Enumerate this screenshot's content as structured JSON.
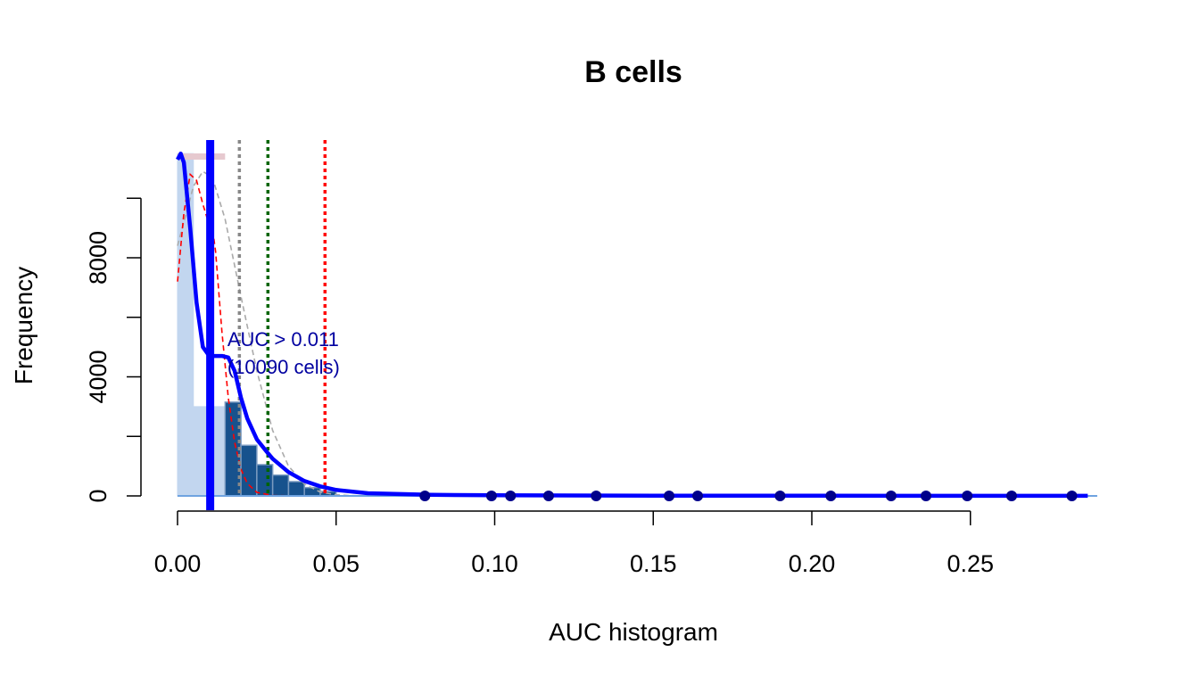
{
  "chart_data": {
    "type": "bar",
    "title": "B cells",
    "xlabel": "AUC histogram",
    "ylabel": "Frequency",
    "xlim": [
      0,
      0.29
    ],
    "ylim": [
      0,
      12000
    ],
    "x_ticks": [
      0.0,
      0.05,
      0.1,
      0.15,
      0.2,
      0.25
    ],
    "x_tick_labels": [
      "0.00",
      "0.05",
      "0.10",
      "0.15",
      "0.20",
      "0.25"
    ],
    "y_ticks": [
      0,
      2000,
      4000,
      6000,
      8000,
      10000
    ],
    "y_tick_labels": [
      "0",
      "",
      "4000",
      "",
      "8000",
      ""
    ],
    "histogram": {
      "bin_width": 0.005,
      "bins": [
        {
          "x0": 0.0,
          "x1": 0.005,
          "count": 11500,
          "style": "light"
        },
        {
          "x0": 0.005,
          "x1": 0.01,
          "count": 3000,
          "style": "light"
        },
        {
          "x0": 0.01,
          "x1": 0.015,
          "count": 3000,
          "style": "light"
        },
        {
          "x0": 0.015,
          "x1": 0.02,
          "count": 3150,
          "style": "dark"
        },
        {
          "x0": 0.02,
          "x1": 0.025,
          "count": 1700,
          "style": "dark"
        },
        {
          "x0": 0.025,
          "x1": 0.03,
          "count": 1050,
          "style": "dark"
        },
        {
          "x0": 0.03,
          "x1": 0.035,
          "count": 700,
          "style": "dark"
        },
        {
          "x0": 0.035,
          "x1": 0.04,
          "count": 480,
          "style": "dark"
        },
        {
          "x0": 0.04,
          "x1": 0.045,
          "count": 280,
          "style": "dark"
        },
        {
          "x0": 0.045,
          "x1": 0.05,
          "count": 150,
          "style": "dark"
        }
      ]
    },
    "density_curve": {
      "x": [
        0,
        0.001,
        0.002,
        0.004,
        0.006,
        0.008,
        0.01,
        0.012,
        0.014,
        0.016,
        0.018,
        0.02,
        0.022,
        0.025,
        0.028,
        0.03,
        0.035,
        0.04,
        0.045,
        0.05,
        0.06,
        0.08,
        0.1,
        0.15,
        0.2,
        0.25,
        0.287
      ],
      "y": [
        11300,
        11500,
        11200,
        9000,
        6500,
        5000,
        4700,
        4700,
        4700,
        4650,
        4200,
        3300,
        2600,
        1900,
        1500,
        1250,
        800,
        500,
        320,
        200,
        90,
        35,
        20,
        10,
        5,
        3,
        2
      ]
    },
    "red_fit_curve": {
      "x": [
        0,
        0.002,
        0.004,
        0.006,
        0.008,
        0.01,
        0.011,
        0.012,
        0.014,
        0.016,
        0.018,
        0.02,
        0.022,
        0.025,
        0.03,
        0.035,
        0.04,
        0.05,
        0.07,
        0.1,
        0.287
      ],
      "y": [
        7200,
        9500,
        10800,
        10600,
        9800,
        9100,
        9000,
        8200,
        5500,
        3300,
        1800,
        900,
        420,
        120,
        15,
        3,
        0,
        0,
        0,
        0,
        0
      ]
    },
    "grey_fit_curve": {
      "x": [
        0,
        0.005,
        0.008,
        0.011,
        0.015,
        0.02,
        0.025,
        0.03,
        0.035,
        0.04,
        0.045,
        0.05,
        0.055,
        0.06,
        0.07
      ],
      "y": [
        8400,
        10400,
        10900,
        10700,
        9300,
        6700,
        4200,
        2200,
        1000,
        400,
        130,
        40,
        10,
        2,
        0
      ]
    },
    "thresholds": [
      {
        "x": 0.0103,
        "color": "#0000ff",
        "style": "solid"
      },
      {
        "x": 0.0195,
        "color": "#888888",
        "style": "dotted"
      },
      {
        "x": 0.0285,
        "color": "#006400",
        "style": "dotted"
      },
      {
        "x": 0.0465,
        "color": "#ff0000",
        "style": "dotted"
      }
    ],
    "outlier_points_x": [
      0.078,
      0.099,
      0.105,
      0.117,
      0.132,
      0.155,
      0.164,
      0.19,
      0.206,
      0.225,
      0.236,
      0.249,
      0.263,
      0.282
    ],
    "top_segment": {
      "x0": 0.0,
      "x1": 0.015,
      "y": 11400
    },
    "annotation": {
      "line1": "AUC > 0.011",
      "line2": "(10090 cells)",
      "x": 0.016,
      "y": 4800
    },
    "colors": {
      "bar_light": "#c2d6ef",
      "bar_dark": "#17528d",
      "bar_dark_edge": "#7a9ac0",
      "density": "#0000ff",
      "red_fit": "#ff0000",
      "grey_fit": "#aaaaaa",
      "points": "#00008b",
      "baseline": "#6fa3e0",
      "annotation": "#0000a0"
    }
  }
}
